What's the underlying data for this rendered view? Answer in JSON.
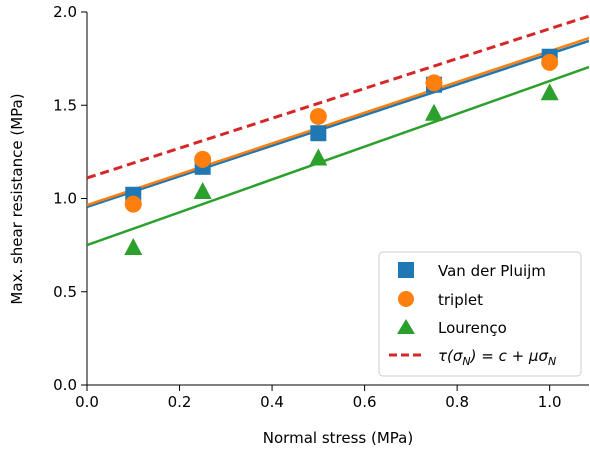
{
  "chart_data": {
    "type": "scatter",
    "xlabel": "Normal stress (MPa)",
    "ylabel": "Max. shear resistance (MPa)",
    "xlim": [
      0.0,
      1.085
    ],
    "ylim": [
      0.0,
      2.0
    ],
    "xticks": [
      0.0,
      0.2,
      0.4,
      0.6,
      0.8,
      1.0
    ],
    "xtick_labels": [
      "0.0",
      "0.2",
      "0.4",
      "0.6",
      "0.8",
      "1.0"
    ],
    "yticks": [
      0.0,
      0.5,
      1.0,
      1.5,
      2.0
    ],
    "ytick_labels": [
      "0.0",
      "0.5",
      "1.0",
      "1.5",
      "2.0"
    ],
    "grid": false,
    "legend_position": "lower-right",
    "series": [
      {
        "name": "Van der Pluijm",
        "marker": "square",
        "color": "#1f77b4",
        "x": [
          0.1,
          0.25,
          0.5,
          0.75,
          1.0
        ],
        "y": [
          1.02,
          1.17,
          1.35,
          1.61,
          1.76
        ],
        "fit": {
          "intercept": 0.955,
          "slope": 0.82
        }
      },
      {
        "name": "triplet",
        "marker": "circle",
        "color": "#ff7f0e",
        "x": [
          0.1,
          0.25,
          0.5,
          0.75,
          1.0
        ],
        "y": [
          0.97,
          1.21,
          1.44,
          1.62,
          1.73
        ],
        "fit": {
          "intercept": 0.965,
          "slope": 0.825
        }
      },
      {
        "name": "Lourenço",
        "marker": "triangle",
        "color": "#2ca02c",
        "x": [
          0.1,
          0.25,
          0.5,
          0.75,
          1.0
        ],
        "y": [
          0.74,
          1.04,
          1.22,
          1.46,
          1.57
        ],
        "fit": {
          "intercept": 0.75,
          "slope": 0.88
        }
      },
      {
        "name": "τ(σN) = c + μσN",
        "marker": "dashed-line",
        "color": "#d62728",
        "fit": {
          "intercept": 1.11,
          "slope": 0.8
        }
      }
    ],
    "legend": {
      "entries": [
        {
          "label": "Van der Pluijm"
        },
        {
          "label": "triplet"
        },
        {
          "label": "Lourenço"
        },
        {
          "label_parts": {
            "tau": "τ(σ",
            "sub1": "N",
            "mid": ") = c + μσ",
            "sub2": "N"
          }
        }
      ]
    }
  }
}
